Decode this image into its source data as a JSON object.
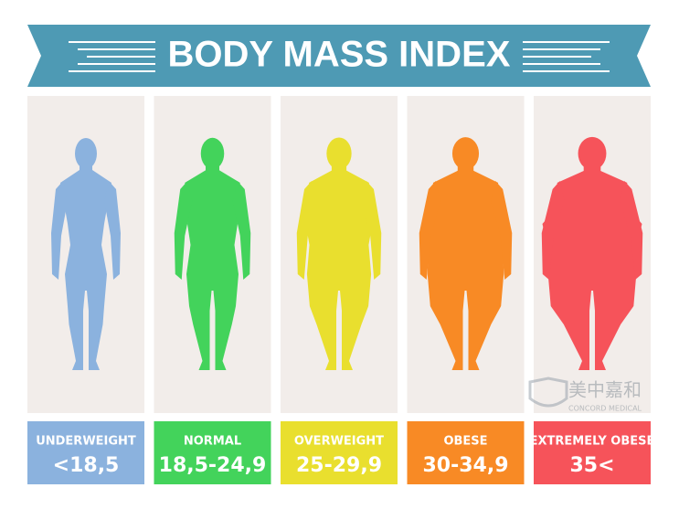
{
  "title": "BODY MASS INDEX",
  "categories": [
    {
      "label": "UNDERWEIGHT",
      "range": "<18,5",
      "color": "#8bb2de"
    },
    {
      "label": "NORMAL",
      "range": "18,5-24,9",
      "color": "#43d35b"
    },
    {
      "label": "OVERWEIGHT",
      "range": "25-29,9",
      "color": "#e9df2e"
    },
    {
      "label": "OBESE",
      "range": "30-34,9",
      "color": "#f88a25"
    },
    {
      "label": "EXTREMELY OBESE",
      "range": "35<",
      "color": "#f6535a"
    }
  ],
  "watermark": {
    "name": "美中嘉和",
    "subtitle": "CONCORD MEDICAL"
  }
}
